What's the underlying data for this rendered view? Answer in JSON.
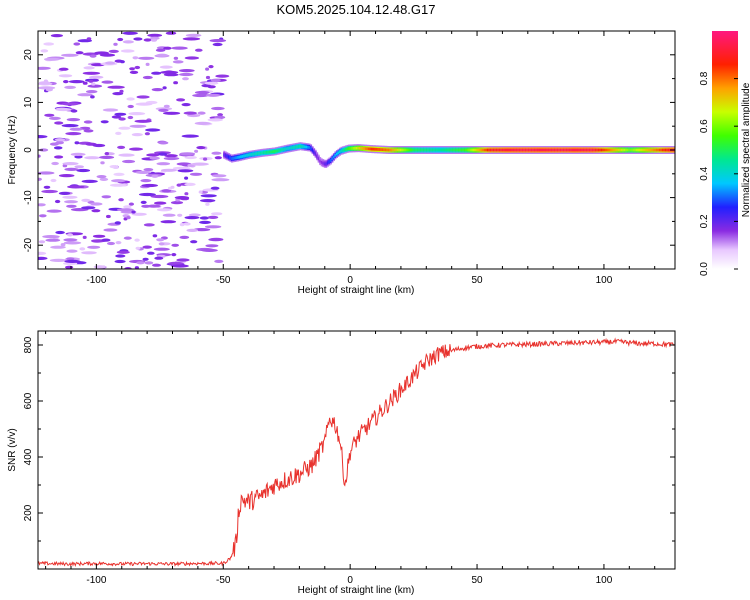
{
  "figure": {
    "title": "KOM5.2025.104.12.48.G17"
  },
  "chart_data": [
    {
      "type": "heatmap",
      "xlabel": "Height of straight line (km)",
      "ylabel": "Frequency (Hz)",
      "xlim": [
        -123,
        128
      ],
      "ylim": [
        -25,
        25
      ],
      "xticks": [
        -100,
        -50,
        0,
        50,
        100
      ],
      "yticks": [
        -20,
        -10,
        0,
        10,
        20
      ],
      "xtick_labels": [
        "-100",
        "-50",
        "0",
        "50",
        "100"
      ],
      "ytick_labels": [
        "-20",
        "-10",
        "0",
        "10",
        "20"
      ],
      "grid": false,
      "noise_region_x": [
        -123,
        -50
      ],
      "signal_trace": {
        "x": [
          -50,
          -47,
          -44,
          -40,
          -35,
          -30,
          -25,
          -20,
          -16,
          -14,
          -12,
          -10,
          -8,
          -6,
          -4,
          -1,
          3,
          8,
          15,
          25,
          35,
          45,
          55,
          65,
          80,
          95,
          110,
          128
        ],
        "freq": [
          -1.0,
          -1.8,
          -1.5,
          -1.0,
          -0.6,
          -0.3,
          0.3,
          0.8,
          0.5,
          -0.8,
          -2.5,
          -3.0,
          -2.2,
          -1.0,
          -0.2,
          0.3,
          0.4,
          0.2,
          0.0,
          0.0,
          0.0,
          0.0,
          0.0,
          0.0,
          0.0,
          0.0,
          0.0,
          0.0
        ],
        "amplitude": [
          0.2,
          0.3,
          0.35,
          0.4,
          0.45,
          0.5,
          0.4,
          0.45,
          0.3,
          0.2,
          0.15,
          0.2,
          0.3,
          0.35,
          0.4,
          0.55,
          0.7,
          0.85,
          0.8,
          0.5,
          0.45,
          0.55,
          0.9,
          0.95,
          0.95,
          0.95,
          0.6,
          0.95
        ]
      },
      "colorbar": {
        "label": "Normalized spectral amplitude",
        "range": [
          0.0,
          1.0
        ],
        "ticks": [
          0.0,
          0.2,
          0.4,
          0.6,
          0.8
        ],
        "tick_labels": [
          "0.0",
          "0.2",
          "0.4",
          "0.6",
          "0.8"
        ]
      }
    },
    {
      "type": "line",
      "xlabel": "Height of straight line (km)",
      "ylabel": "SNR (v/v)",
      "xlim": [
        -123,
        128
      ],
      "ylim": [
        0,
        850
      ],
      "xticks": [
        -100,
        -50,
        0,
        50,
        100
      ],
      "yticks": [
        200,
        400,
        600,
        800
      ],
      "xtick_labels": [
        "-100",
        "-50",
        "0",
        "50",
        "100"
      ],
      "ytick_labels": [
        "200",
        "400",
        "600",
        "800"
      ],
      "grid": false,
      "series": [
        {
          "color": "#e8322d",
          "x": [
            -123,
            -110,
            -100,
            -90,
            -80,
            -70,
            -60,
            -50,
            -47,
            -45,
            -44,
            -43,
            -40,
            -35,
            -30,
            -25,
            -20,
            -15,
            -12,
            -10,
            -8,
            -6,
            -4,
            -2,
            0,
            3,
            6,
            10,
            15,
            20,
            25,
            30,
            35,
            40,
            45,
            50,
            60,
            70,
            80,
            90,
            100,
            105,
            110,
            115,
            120,
            128
          ],
          "y": [
            20,
            18,
            20,
            18,
            19,
            18,
            20,
            20,
            40,
            90,
            200,
            250,
            240,
            260,
            300,
            320,
            340,
            370,
            420,
            450,
            540,
            520,
            460,
            300,
            420,
            470,
            500,
            540,
            590,
            640,
            690,
            740,
            770,
            780,
            790,
            795,
            800,
            802,
            805,
            808,
            810,
            812,
            808,
            805,
            805,
            800
          ]
        }
      ]
    }
  ]
}
